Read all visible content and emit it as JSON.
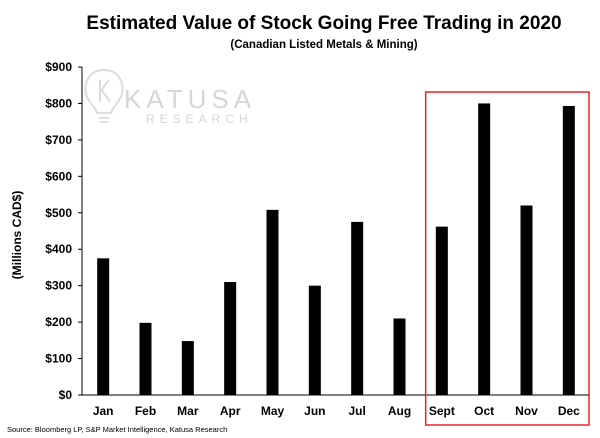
{
  "chart_data": {
    "type": "bar",
    "title": "Estimated Value of Stock Going Free Trading in 2020",
    "subtitle": "(Canadian  Listed Metals & Mining)",
    "xlabel": "",
    "ylabel": "(Millions CAD$)",
    "ylim": [
      0,
      900
    ],
    "yticks": [
      0,
      100,
      200,
      300,
      400,
      500,
      600,
      700,
      800,
      900
    ],
    "ytick_labels": [
      "$0",
      "$100",
      "$200",
      "$300",
      "$400",
      "$500",
      "$600",
      "$700",
      "$800",
      "$900"
    ],
    "categories": [
      "Jan",
      "Feb",
      "Mar",
      "Apr",
      "May",
      "Jun",
      "Jul",
      "Aug",
      "Sept",
      "Oct",
      "Nov",
      "Dec"
    ],
    "values": [
      375,
      198,
      148,
      310,
      508,
      300,
      475,
      210,
      462,
      800,
      520,
      793
    ],
    "bar_color": "#000000",
    "highlight": {
      "categories": [
        "Sept",
        "Oct",
        "Nov",
        "Dec"
      ],
      "color": "#e8262a"
    },
    "grid": false,
    "source": "Source: Bloomberg LP, S&P Market Intelligence, Katusa Research"
  },
  "watermark": {
    "name": "KATUSA",
    "sub": "RESEARCH",
    "color": "#d6d6d6"
  }
}
